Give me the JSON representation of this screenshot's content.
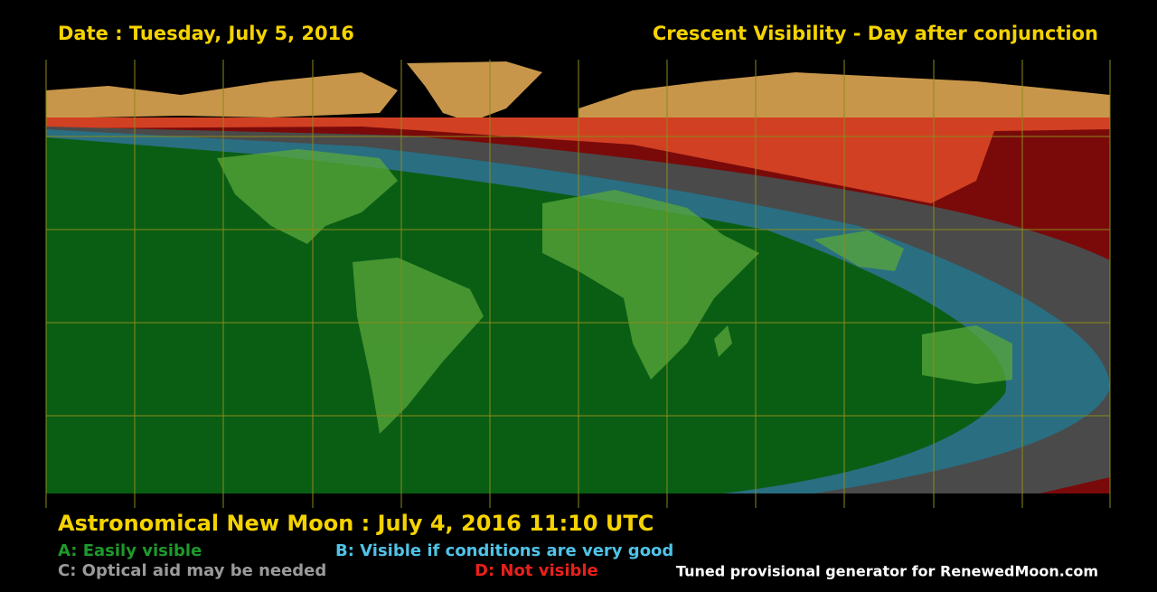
{
  "header": {
    "date": "Date : Tuesday, July 5, 2016",
    "title": "Crescent Visibility - Day after conjunction"
  },
  "footer": {
    "new_moon": "Astronomical New Moon : July 4, 2016 11:10 UTC",
    "legend": [
      {
        "label": "A: Easily visible"
      },
      {
        "label": "B: Visible if conditions are very good"
      },
      {
        "label": "C: Optical aid may be needed"
      },
      {
        "label": "D: Not visible"
      }
    ],
    "credit": "Tuned provisional generator for RenewedMoon.com"
  }
}
